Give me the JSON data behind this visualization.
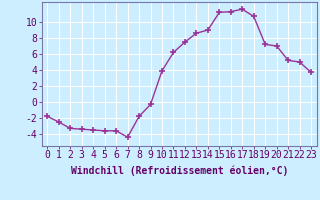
{
  "x": [
    0,
    1,
    2,
    3,
    4,
    5,
    6,
    7,
    8,
    9,
    10,
    11,
    12,
    13,
    14,
    15,
    16,
    17,
    18,
    19,
    20,
    21,
    22,
    23
  ],
  "y": [
    -1.8,
    -2.5,
    -3.3,
    -3.4,
    -3.5,
    -3.6,
    -3.6,
    -4.4,
    -1.8,
    -0.3,
    3.9,
    6.2,
    7.5,
    8.6,
    9.0,
    11.2,
    11.3,
    11.6,
    10.7,
    7.2,
    7.0,
    5.2,
    5.0,
    3.7
  ],
  "line_color": "#993399",
  "marker": "+",
  "marker_size": 4,
  "bg_color": "#cceeff",
  "grid_color": "#aacccc",
  "xlabel": "Windchill (Refroidissement éolien,°C)",
  "xlabel_fontsize": 7,
  "tick_fontsize": 7,
  "ylim": [
    -5.5,
    12.5
  ],
  "xlim": [
    -0.5,
    23.5
  ],
  "yticks": [
    -4,
    -2,
    0,
    2,
    4,
    6,
    8,
    10
  ],
  "xticks": [
    0,
    1,
    2,
    3,
    4,
    5,
    6,
    7,
    8,
    9,
    10,
    11,
    12,
    13,
    14,
    15,
    16,
    17,
    18,
    19,
    20,
    21,
    22,
    23
  ],
  "spine_color": "#7777aa",
  "label_color": "#660066"
}
